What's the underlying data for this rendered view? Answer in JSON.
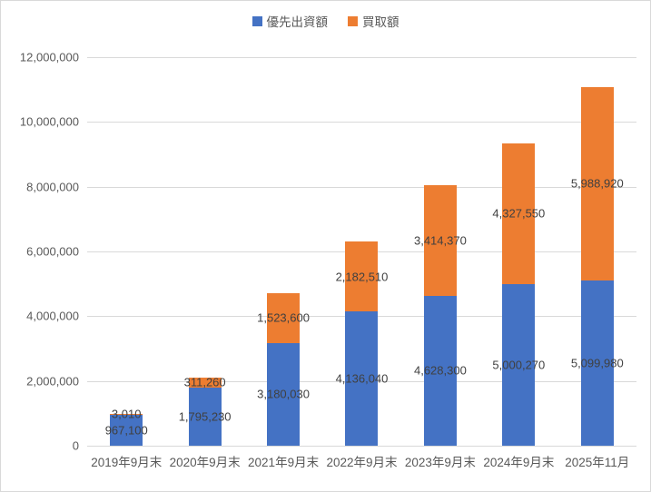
{
  "colors": {
    "background": "#FFFFFF",
    "border": "#D9D9D9",
    "gridline": "#D9D9D9",
    "axis_text": "#595959",
    "legend_text": "#595959",
    "data_label_text": "#404040",
    "series_blue": "#4472C4",
    "series_orange": "#ED7D31"
  },
  "chart_data": {
    "type": "bar",
    "stacked": true,
    "title": "",
    "xlabel": "",
    "ylabel": "",
    "grid": true,
    "legend_position": "top",
    "ylim": [
      0,
      12000000
    ],
    "ytick_step": 2000000,
    "ytick_labels": [
      "0",
      "2,000,000",
      "4,000,000",
      "6,000,000",
      "8,000,000",
      "10,000,000",
      "12,000,000"
    ],
    "categories": [
      "2019年9月末",
      "2020年9月末",
      "2021年9月末",
      "2022年9月末",
      "2023年9月末",
      "2024年9月末",
      "2025年11月"
    ],
    "series": [
      {
        "name": "優先出資額",
        "color": "#4472C4",
        "values": [
          967100,
          1795230,
          3180030,
          4136040,
          4628300,
          5000270,
          5099980
        ],
        "labels": [
          "967,100",
          "1,795,230",
          "3,180,030",
          "4,136,040",
          "4,628,300",
          "5,000,270",
          "5,099,980"
        ]
      },
      {
        "name": "買取額",
        "color": "#ED7D31",
        "values": [
          3010,
          311260,
          1523600,
          2182510,
          3414370,
          4327550,
          5988920
        ],
        "labels": [
          "3,010",
          "311,260",
          "1,523,600",
          "2,182,510",
          "3,414,370",
          "4,327,550",
          "5,988,920"
        ]
      }
    ]
  }
}
